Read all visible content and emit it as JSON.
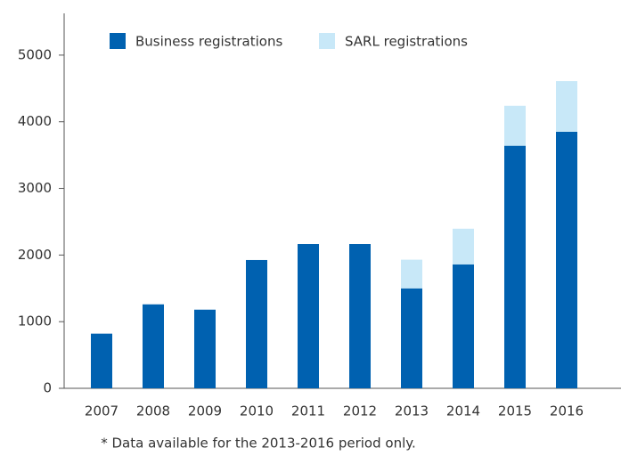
{
  "chart_data": {
    "type": "stacked_bar",
    "categories": [
      "2007",
      "2008",
      "2009",
      "2010",
      "2011",
      "2012",
      "2013",
      "2014",
      "2015",
      "2016"
    ],
    "series": [
      {
        "name": "Business registrations",
        "color": "#0061b0",
        "values": [
          820,
          1260,
          1180,
          1925,
          2165,
          2165,
          1500,
          1860,
          3640,
          3850
        ]
      },
      {
        "name": "SARL registrations",
        "color": "#c8e8f8",
        "values": [
          null,
          null,
          null,
          null,
          null,
          null,
          430,
          535,
          600,
          760
        ]
      }
    ],
    "ylim": [
      0,
      5600
    ],
    "yticks": [
      0,
      1000,
      2000,
      3000,
      4000,
      5000
    ],
    "footnote": "* Data available for the 2013-2016 period only."
  }
}
